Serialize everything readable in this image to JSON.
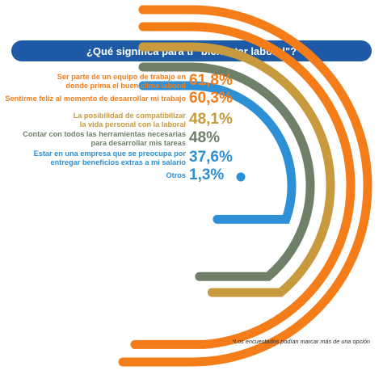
{
  "header": {
    "title": "¿Qué significa para ti \"bienestar laboral\"?"
  },
  "colors": {
    "header_bg": "#1e5aa6"
  },
  "footnote": "*Los encuestados podían marcar más de una opción",
  "chart_data": {
    "type": "radial-bar",
    "title": "¿Qué significa para ti \"bienestar laboral\"?",
    "series": [
      {
        "label_lines": [
          "Ser parte de un equipo de trabajo en",
          "donde prima el buen clima laboral"
        ],
        "value": 61.8,
        "value_label": "61,8%",
        "color": "#f47d1a"
      },
      {
        "label_lines": [
          "Sentirme feliz al momento de desarrollar mi trabajo"
        ],
        "value": 60.3,
        "value_label": "60,3%",
        "color": "#f47d1a"
      },
      {
        "label_lines": [
          "La posibilidad de compatibilizar",
          "la vida personal con la laboral"
        ],
        "value": 48.1,
        "value_label": "48,1%",
        "color": "#c89a3e"
      },
      {
        "label_lines": [
          "Contar con todos las herramientas necesarias",
          "para desarrollar mis tareas"
        ],
        "value": 48,
        "value_label": "48%",
        "color": "#6e8068"
      },
      {
        "label_lines": [
          "Estar en una empresa que se preocupa por",
          "entregar beneficios extras a mi salario"
        ],
        "value": 37.6,
        "value_label": "37,6%",
        "color": "#2d8fd5"
      },
      {
        "label_lines": [
          "Otros"
        ],
        "value": 1.3,
        "value_label": "1,3%",
        "color": "#2d8fd5"
      }
    ]
  }
}
